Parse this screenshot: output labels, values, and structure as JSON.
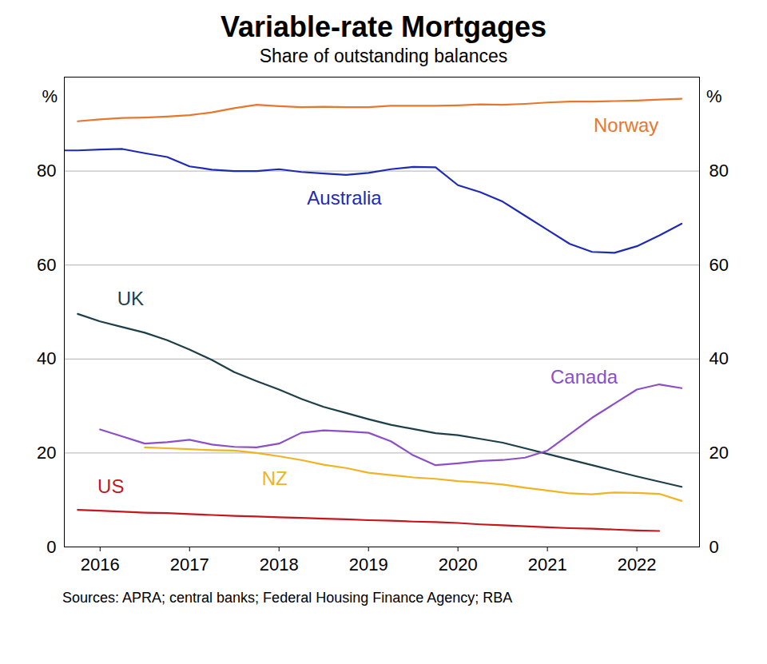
{
  "chart_data": {
    "type": "line",
    "title": "Variable-rate Mortgages",
    "subtitle": "Share of outstanding balances",
    "caption": "Sources: APRA; central banks; Federal Housing Finance Agency; RBA",
    "ylabel": "%",
    "y2label": "%",
    "x": [
      2016.1,
      2016.25,
      2016.5,
      2016.75,
      2017,
      2017.25,
      2017.5,
      2017.75,
      2018,
      2018.25,
      2018.5,
      2018.75,
      2019,
      2019.25,
      2019.5,
      2019.75,
      2020,
      2020.25,
      2020.5,
      2020.75,
      2021,
      2021.25,
      2021.5,
      2021.75,
      2022,
      2022.25,
      2022.5,
      2022.75,
      2023
    ],
    "xlim": [
      2016.1,
      2023.2
    ],
    "xticks": [
      {
        "value": 2016.5,
        "label": "2016"
      },
      {
        "value": 2017.5,
        "label": "2017"
      },
      {
        "value": 2018.5,
        "label": "2018"
      },
      {
        "value": 2019.5,
        "label": "2019"
      },
      {
        "value": 2020.5,
        "label": "2020"
      },
      {
        "value": 2021.5,
        "label": "2021"
      },
      {
        "value": 2022.5,
        "label": "2022"
      }
    ],
    "ylim": [
      0,
      100
    ],
    "yticks": [
      0,
      20,
      40,
      60,
      80
    ],
    "y2lim": [
      0,
      100
    ],
    "y2ticks": [
      0,
      20,
      40,
      60,
      80
    ],
    "grid": true,
    "series": [
      {
        "name": "Norway",
        "color": "#e8772e",
        "values": [
          null,
          90.6,
          91.0,
          91.3,
          91.4,
          91.6,
          91.9,
          92.5,
          93.4,
          94.1,
          93.8,
          93.6,
          93.7,
          93.6,
          93.6,
          93.9,
          93.9,
          93.9,
          94.0,
          94.2,
          94.1,
          94.3,
          94.6,
          94.8,
          94.8,
          94.9,
          95.0,
          95.2,
          95.4
        ]
      },
      {
        "name": "Australia",
        "color": "#1f2bb5",
        "values": [
          84.4,
          84.4,
          84.6,
          84.7,
          83.8,
          83.0,
          81.0,
          80.3,
          80.0,
          80.0,
          80.4,
          79.8,
          79.5,
          79.2,
          79.6,
          80.4,
          80.9,
          80.8,
          77.0,
          75.5,
          73.5,
          70.5,
          67.5,
          64.5,
          62.8,
          62.6,
          64.0,
          66.3,
          68.8
        ]
      },
      {
        "name": "UK",
        "color": "#1d3f4a",
        "values": [
          null,
          49.6,
          48.0,
          46.8,
          45.6,
          44.0,
          42.0,
          39.8,
          37.2,
          35.3,
          33.5,
          31.5,
          29.8,
          28.5,
          27.2,
          26.0,
          25.1,
          24.2,
          23.8,
          23.0,
          22.2,
          21.0,
          19.8,
          18.6,
          17.4,
          16.2,
          15.0,
          13.9,
          12.8
        ]
      },
      {
        "name": "Canada",
        "color": "#8c4fc7",
        "values": [
          null,
          null,
          25.0,
          23.5,
          22.0,
          22.3,
          22.8,
          21.8,
          21.3,
          21.2,
          22.0,
          24.3,
          24.8,
          24.6,
          24.3,
          22.5,
          19.5,
          17.4,
          17.8,
          18.3,
          18.5,
          19.0,
          20.5,
          24.0,
          27.5,
          30.5,
          33.5,
          34.6,
          33.8
        ]
      },
      {
        "name": "NZ",
        "color": "#f0b323",
        "values": [
          null,
          null,
          null,
          null,
          21.2,
          21.0,
          20.8,
          20.6,
          20.5,
          20.0,
          19.3,
          18.5,
          17.5,
          16.8,
          15.8,
          15.3,
          14.8,
          14.5,
          14.0,
          13.7,
          13.3,
          12.6,
          12.0,
          11.4,
          11.2,
          11.6,
          11.5,
          11.3,
          9.8
        ]
      },
      {
        "name": "US",
        "color": "#c4161c",
        "values": [
          null,
          7.9,
          7.7,
          7.5,
          7.3,
          7.2,
          7.0,
          6.8,
          6.6,
          6.5,
          6.3,
          6.2,
          6.0,
          5.9,
          5.7,
          5.6,
          5.4,
          5.3,
          5.1,
          4.8,
          4.6,
          4.4,
          4.2,
          4.0,
          3.9,
          3.7,
          3.5,
          3.4,
          null
        ]
      }
    ]
  }
}
